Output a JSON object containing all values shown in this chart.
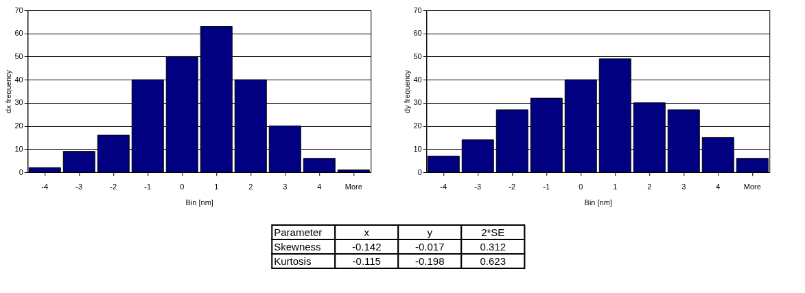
{
  "chart_data": [
    {
      "type": "bar",
      "xlabel": "Bin [nm]",
      "ylabel": "dx frequency",
      "categories": [
        "-4",
        "-3",
        "-2",
        "-1",
        "0",
        "1",
        "2",
        "3",
        "4",
        "More"
      ],
      "series": [
        {
          "color": "#000080",
          "values": [
            2,
            9,
            16,
            40,
            50,
            63,
            40,
            20,
            6,
            1
          ]
        }
      ],
      "ylim": [
        0,
        70
      ],
      "yticks": [
        0,
        10,
        20,
        30,
        40,
        50,
        60,
        70
      ],
      "grid": "y",
      "legend": false
    },
    {
      "type": "bar",
      "xlabel": "Bin [nm]",
      "ylabel": "dy frequency",
      "categories": [
        "-4",
        "-3",
        "-2",
        "-1",
        "0",
        "1",
        "2",
        "3",
        "4",
        "More"
      ],
      "series": [
        {
          "color": "#000080",
          "values": [
            7,
            14,
            27,
            32,
            40,
            49,
            30,
            27,
            15,
            6
          ]
        }
      ],
      "ylim": [
        0,
        70
      ],
      "yticks": [
        0,
        10,
        20,
        30,
        40,
        50,
        60,
        70
      ],
      "grid": "y",
      "legend": false
    },
    {
      "type": "other",
      "categories": [
        "Parameter",
        "x",
        "y",
        "2*SE"
      ],
      "annotations": [
        "Skewness",
        "-0.142",
        "-0.017",
        "0.312",
        "Kurtosis",
        "-0.115",
        "-0.198",
        "0.623"
      ]
    }
  ]
}
